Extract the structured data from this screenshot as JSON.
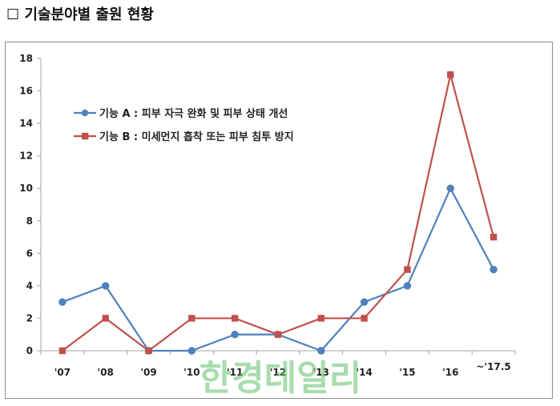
{
  "heading": {
    "box_glyph": "☐",
    "title": "기술분야별 출원 현황"
  },
  "watermark": "한경데일리",
  "colors": {
    "series_a": "#4f81bd",
    "series_b": "#c0504d",
    "axis": "#a6a6a6"
  },
  "chart_data": {
    "type": "line",
    "title": "",
    "xlabel": "",
    "ylabel": "",
    "categories": [
      "'07",
      "'08",
      "'09",
      "'10",
      "'11",
      "'12",
      "'13",
      "'14",
      "'15",
      "'16",
      "~'17.5"
    ],
    "ylim": [
      0,
      18
    ],
    "yticks": [
      0,
      2,
      4,
      6,
      8,
      10,
      12,
      14,
      16,
      18
    ],
    "grid": false,
    "legend_position": "top-left",
    "series": [
      {
        "name": "기능 A : 피부 자극 완화 및 피부 상태 개선",
        "marker": "circle",
        "values": [
          3,
          4,
          0,
          0,
          1,
          1,
          0,
          3,
          4,
          10,
          5
        ]
      },
      {
        "name": "기능 B : 미세먼지 흡착 또는 피부 침투 방지",
        "marker": "square",
        "values": [
          0,
          2,
          0,
          2,
          2,
          1,
          2,
          2,
          5,
          17,
          7
        ]
      }
    ]
  }
}
